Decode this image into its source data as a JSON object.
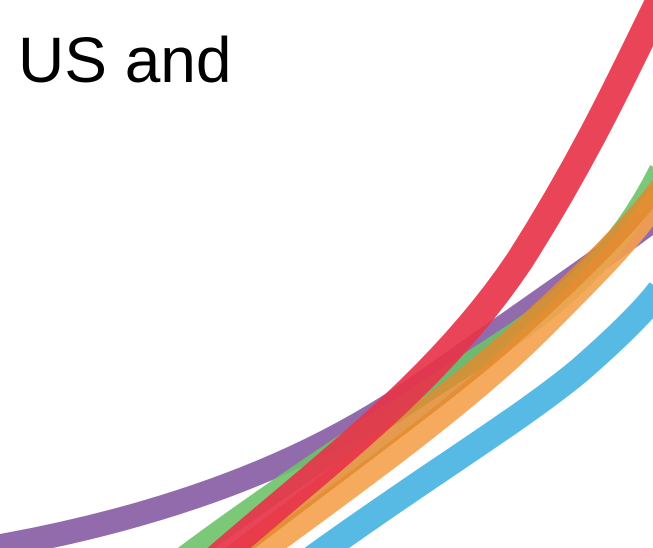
{
  "slide": {
    "title": "US and"
  },
  "decoration": {
    "colors": {
      "purple": "#8B63A6",
      "green": "#6DC26A",
      "orange": "#F5A14B",
      "amber": "#E0892E",
      "blue": "#4EB6E3",
      "red": "#E8344A"
    }
  }
}
